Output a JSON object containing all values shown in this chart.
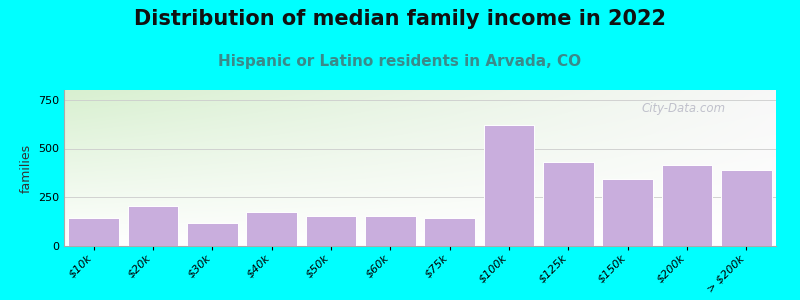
{
  "title": "Distribution of median family income in 2022",
  "subtitle": "Hispanic or Latino residents in Arvada, CO",
  "ylabel": "families",
  "categories": [
    "$10k",
    "$20k",
    "$30k",
    "$40k",
    "$50k",
    "$60k",
    "$75k",
    "$100k",
    "$125k",
    "$150k",
    "$200k",
    "> $200k"
  ],
  "values": [
    145,
    205,
    120,
    175,
    155,
    155,
    145,
    620,
    430,
    345,
    415,
    390
  ],
  "bar_color": "#c9aedd",
  "bar_edge_color": "#ffffff",
  "background_color": "#00ffff",
  "plot_bg_topleft": "#d8f0d0",
  "plot_bg_right": "#f8f8f8",
  "plot_bg_bottom": "#ffffff",
  "title_fontsize": 15,
  "subtitle_fontsize": 11,
  "ylabel_fontsize": 9,
  "tick_fontsize": 8,
  "ylim": [
    0,
    800
  ],
  "yticks": [
    0,
    250,
    500,
    750
  ],
  "watermark": "City-Data.com",
  "subtitle_color": "#3a8a8a",
  "title_color": "#111111"
}
